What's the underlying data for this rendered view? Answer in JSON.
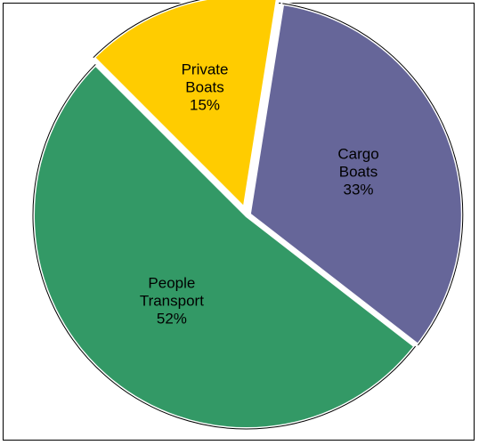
{
  "chart_data": {
    "type": "pie",
    "title": "",
    "slices": [
      {
        "name_lines": [
          "Cargo",
          "Boats"
        ],
        "value": 33,
        "label": "33%",
        "color": "#666699"
      },
      {
        "name_lines": [
          "People",
          "Transport"
        ],
        "value": 52,
        "label": "52%",
        "color": "#339966"
      },
      {
        "name_lines": [
          "Private",
          "Boats"
        ],
        "value": 15,
        "label": "15%",
        "color": "#FFCC00"
      }
    ],
    "exploded": true,
    "legend": "none",
    "outline_color": "#000000",
    "separator_color": "#ffffff"
  }
}
